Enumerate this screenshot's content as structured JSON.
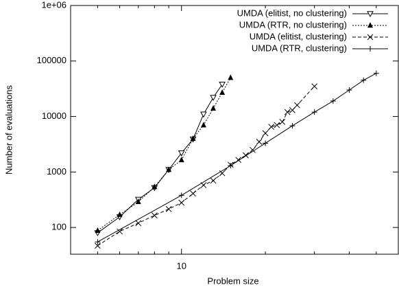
{
  "chart_data": {
    "type": "line",
    "xlabel": "Problem size",
    "ylabel": "Number of evaluations",
    "xlog": true,
    "ylog": true,
    "xlim": [
      4,
      60
    ],
    "ylim": [
      33,
      1000000
    ],
    "xticks": [
      10
    ],
    "xminorticks": [
      4,
      5,
      6,
      7,
      8,
      9,
      20,
      30,
      40,
      50
    ],
    "yticks": [
      100,
      1000,
      10000,
      100000,
      {
        "value": 1000000,
        "label": "1e+06"
      }
    ],
    "legend": "top-right",
    "series": [
      {
        "name": "UMDA (elitist, no clustering)",
        "color": "#000000",
        "marker": "triangle-down-open",
        "dash": "solid",
        "x": [
          5,
          6,
          7,
          8,
          9,
          10,
          11,
          12,
          13,
          14
        ],
        "values": [
          80,
          155,
          320,
          520,
          1100,
          2200,
          3900,
          11000,
          22000,
          38000
        ]
      },
      {
        "name": "UMDA (RTR, no clustering)",
        "color": "#000000",
        "marker": "triangle-up-filled",
        "dash": "dotted",
        "x": [
          5,
          6,
          7,
          8,
          9,
          10,
          11,
          12,
          13,
          14,
          15
        ],
        "values": [
          88,
          170,
          290,
          540,
          1100,
          1650,
          4000,
          7000,
          14000,
          27000,
          50000
        ]
      },
      {
        "name": "UMDA (elitist, clustering)",
        "color": "#000000",
        "marker": "x",
        "dash": "dashed",
        "x": [
          5,
          6,
          7,
          8,
          9,
          10,
          11,
          12,
          13,
          14,
          15,
          16,
          17,
          18,
          19,
          20,
          21,
          22,
          23,
          24,
          25,
          26,
          30
        ],
        "values": [
          47,
          85,
          120,
          165,
          215,
          280,
          410,
          580,
          700,
          950,
          1350,
          1650,
          2000,
          2500,
          3500,
          5000,
          6500,
          7000,
          8000,
          12000,
          13000,
          16000,
          35000
        ]
      },
      {
        "name": "UMDA (RTR, clustering)",
        "color": "#000000",
        "marker": "plus",
        "dash": "solid",
        "x": [
          5,
          10,
          15,
          20,
          25,
          30,
          35,
          40,
          45,
          50
        ],
        "values": [
          55,
          380,
          1300,
          3300,
          6800,
          12000,
          19000,
          30000,
          45000,
          60000
        ]
      }
    ]
  }
}
